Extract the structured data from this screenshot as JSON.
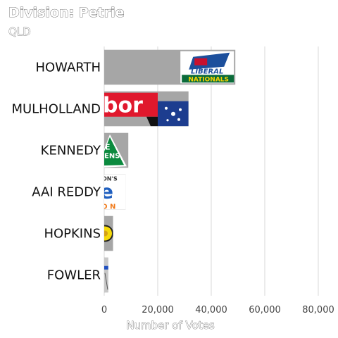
{
  "chart_data": {
    "type": "bar",
    "orientation": "horizontal",
    "title": "Division: Petrie",
    "subtitle": "QLD",
    "xlabel": "Number of Votes",
    "ylabel": "",
    "xlim": [
      0,
      80000
    ],
    "x_ticks": [
      0,
      20000,
      40000,
      60000,
      80000
    ],
    "x_tick_labels": [
      "0",
      "20,000",
      "40,000",
      "60,000",
      "80,000"
    ],
    "grid": "vertical",
    "bar_color": "#a6a6a6",
    "categories": [
      "HOWARTH",
      "MULHOLLAND",
      "KENNEDY",
      "AAI REDDY",
      "HOPKINS",
      "FOWLER"
    ],
    "values": [
      49000,
      31500,
      9000,
      8000,
      3300,
      1500
    ],
    "party_logos": [
      {
        "candidate": "HOWARTH",
        "icon": "liberal-nationals-logo",
        "text_top": "LIBERAL",
        "text_bottom": "NATIONALS"
      },
      {
        "candidate": "MULHOLLAND",
        "icon": "labor-logo",
        "text": "bor"
      },
      {
        "candidate": "KENNEDY",
        "icon": "greens-logo",
        "text_top": "E",
        "text_bottom": "ENS"
      },
      {
        "candidate": "AAI REDDY",
        "icon": "one-nation-logo",
        "text_top": "ON'S",
        "text_mid": "e",
        "text_bottom": "O N"
      },
      {
        "candidate": "HOPKINS",
        "icon": "yellow-round-logo"
      },
      {
        "candidate": "FOWLER",
        "icon": "blue-line-logo"
      }
    ]
  }
}
